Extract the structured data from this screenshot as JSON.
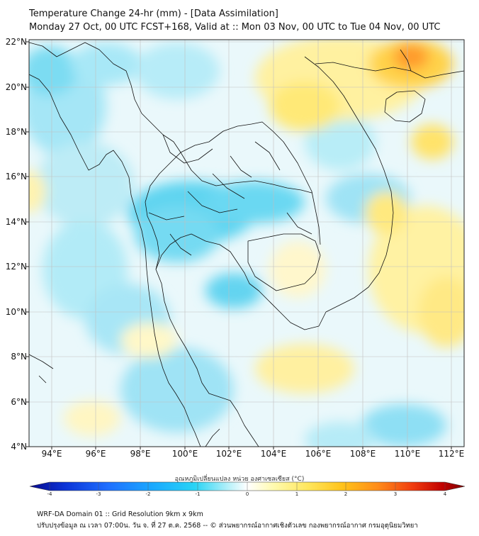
{
  "header": {
    "title": "Temperature Change 24-hr (mm) - [Data Assimilation]",
    "subtitle": "Monday 27 Oct, 00 UTC FCST+168, Valid at :: Mon 03 Nov, 00 UTC to Tue 04 Nov, 00 UTC"
  },
  "axes": {
    "lat_labels": [
      "22°N",
      "20°N",
      "18°N",
      "16°N",
      "14°N",
      "12°N",
      "10°N",
      "8°N",
      "6°N",
      "4°N"
    ],
    "lon_labels": [
      "94°E",
      "96°E",
      "98°E",
      "100°E",
      "102°E",
      "104°E",
      "106°E",
      "108°E",
      "110°E",
      "112°E"
    ]
  },
  "colorbar": {
    "title": "อุณหภูมิเปลี่ยนแปลง หน่วย องศาเซลเซียส (°C)",
    "ticks": [
      "-4",
      "-3",
      "-2",
      "-1",
      "0",
      "1",
      "2",
      "3",
      "4"
    ],
    "colors": [
      "#0a0a8c",
      "#0b33d6",
      "#1f6fff",
      "#1aa8ff",
      "#29d4f5",
      "#9fecf8",
      "#ffffff",
      "#fffab0",
      "#ffe65c",
      "#ffc21a",
      "#ff8c1a",
      "#f03c0f",
      "#c00000",
      "#7a0000"
    ]
  },
  "footer": {
    "line1": "WRF-DA Domain 01 :: Grid Resolution 9km x 9km",
    "line2": "ปรับปรุงข้อมูล ณ เวลา 07:00น. วัน จ. ที่ 27 ต.ค. 2568 -- © ส่วนพยากรณ์อากาศเชิงตัวเลข กองพยากรณ์อากาศ กรมอุตุนิยมวิทยา"
  }
}
